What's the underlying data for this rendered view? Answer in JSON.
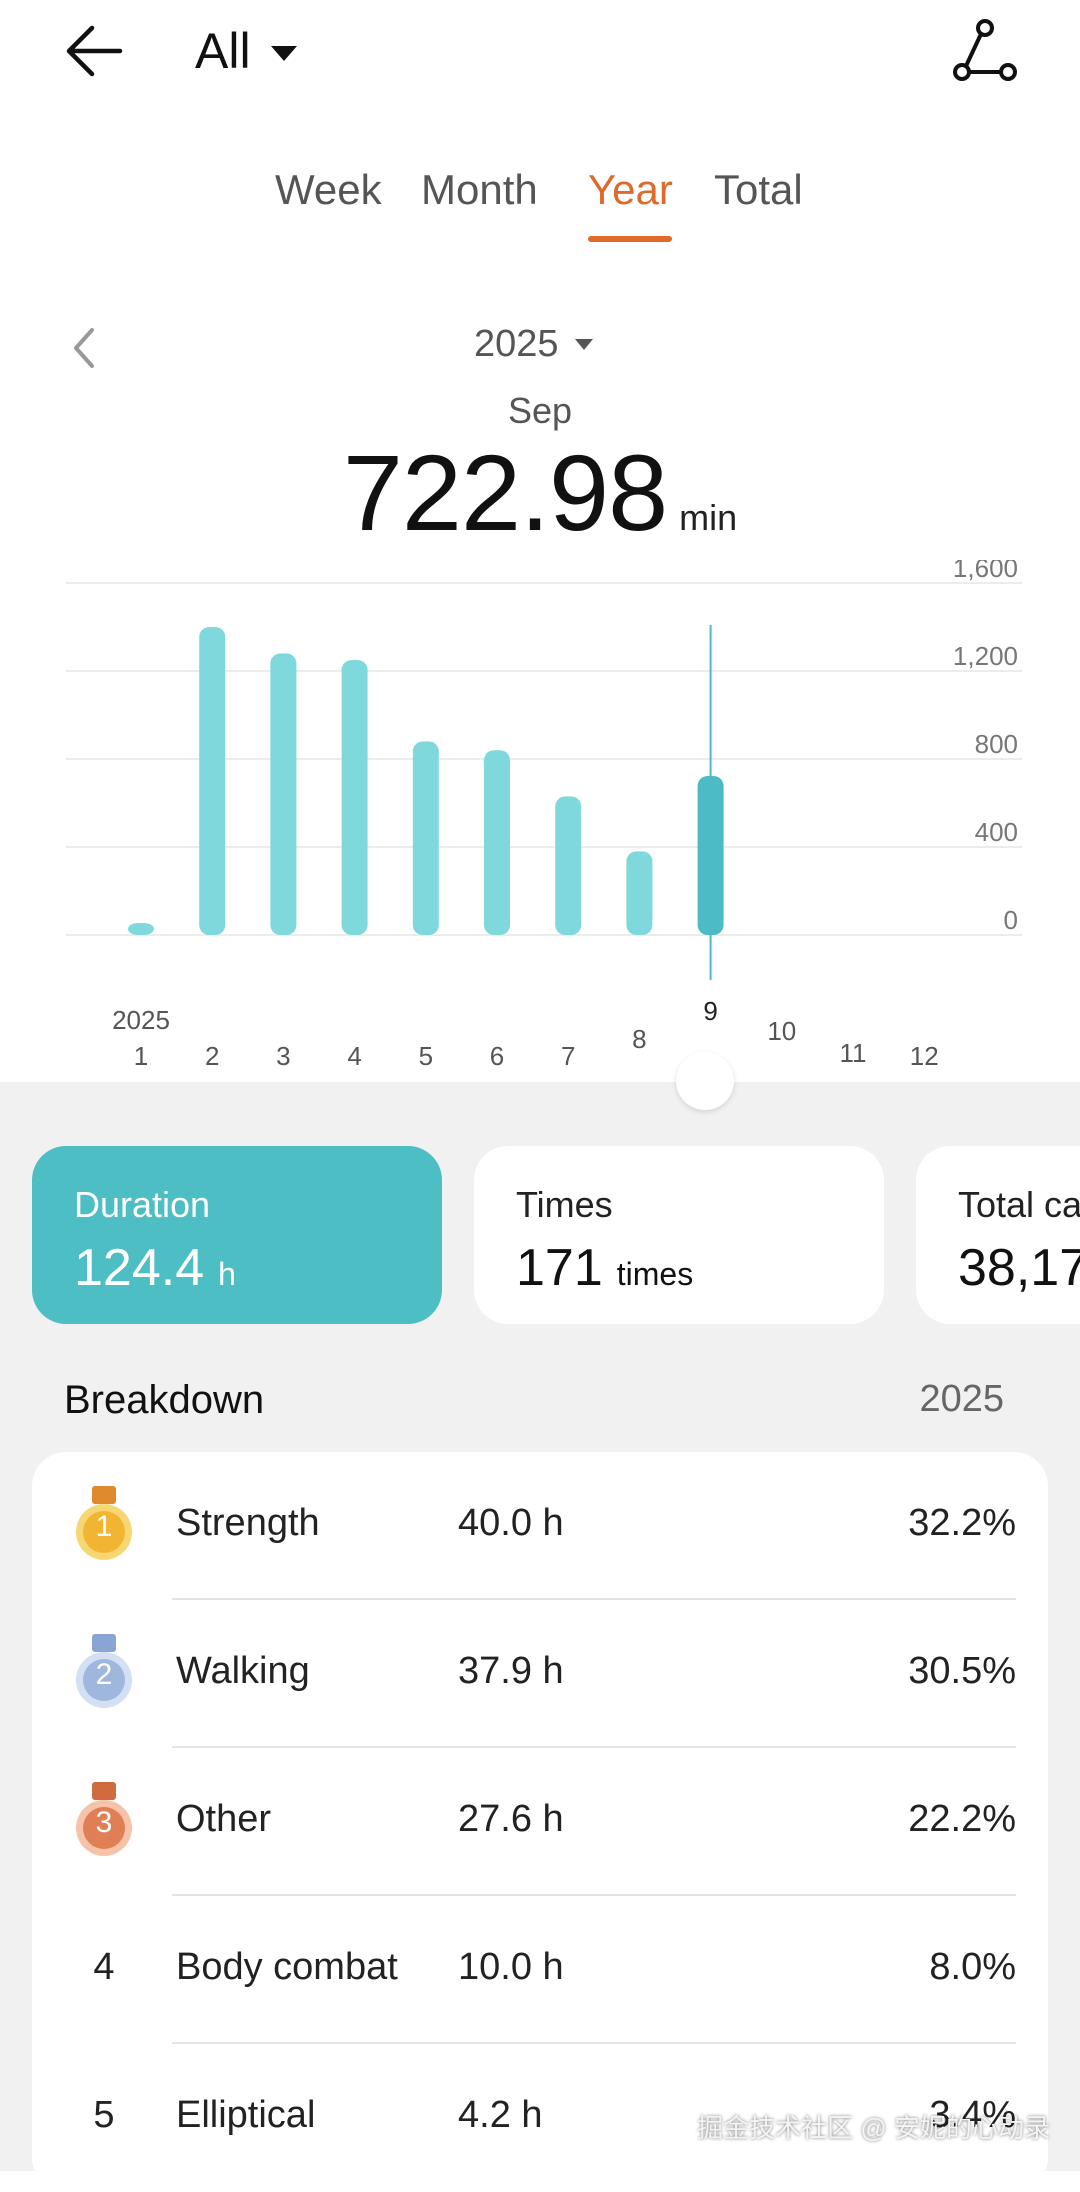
{
  "header": {
    "filter_label": "All"
  },
  "tabs": [
    "Week",
    "Month",
    "Year",
    "Total"
  ],
  "active_tab": "Year",
  "year_selector": {
    "label": "2025"
  },
  "summary": {
    "month": "Sep",
    "value": "722.98",
    "unit": "min"
  },
  "chart_data": {
    "type": "bar",
    "year_label": "2025",
    "categories": [
      "1",
      "2",
      "3",
      "4",
      "5",
      "6",
      "7",
      "8",
      "9",
      "10",
      "11",
      "12"
    ],
    "values": [
      50,
      1400,
      1280,
      1250,
      880,
      840,
      630,
      380,
      723,
      null,
      null,
      null
    ],
    "selected_index": 8,
    "ylim": [
      0,
      1600
    ],
    "yticks": [
      "0",
      "400",
      "800",
      "1,200",
      "1,600"
    ],
    "ytick_values": [
      0,
      400,
      800,
      1200,
      1600
    ],
    "grid": true,
    "colors": {
      "bar": "#7fd9dc",
      "selected": "#4dbbc3"
    }
  },
  "cards": [
    {
      "label": "Duration",
      "value": "124.4",
      "unit": "h"
    },
    {
      "label": "Times",
      "value": "171",
      "unit": "times"
    },
    {
      "label": "Total ca",
      "value": "38,17",
      "unit": ""
    }
  ],
  "breakdown": {
    "title": "Breakdown",
    "year": "2025",
    "rows": [
      {
        "rank": "1",
        "name": "Strength",
        "hours": "40.0 h",
        "pct": "32.2%"
      },
      {
        "rank": "2",
        "name": "Walking",
        "hours": "37.9 h",
        "pct": "30.5%"
      },
      {
        "rank": "3",
        "name": "Other",
        "hours": "27.6 h",
        "pct": "22.2%"
      },
      {
        "rank": "4",
        "name": "Body combat",
        "hours": "10.0 h",
        "pct": "8.0%"
      },
      {
        "rank": "5",
        "name": "Elliptical",
        "hours": "4.2 h",
        "pct": "3.4%"
      }
    ]
  },
  "watermark": "掘金技术社区 @ 安妮的心动录",
  "colors": {
    "accent": "#e06a2b",
    "teal": "#4dbfc4",
    "gold": "#f2b533",
    "silver": "#9fb7dc",
    "bronze": "#e07f56"
  }
}
